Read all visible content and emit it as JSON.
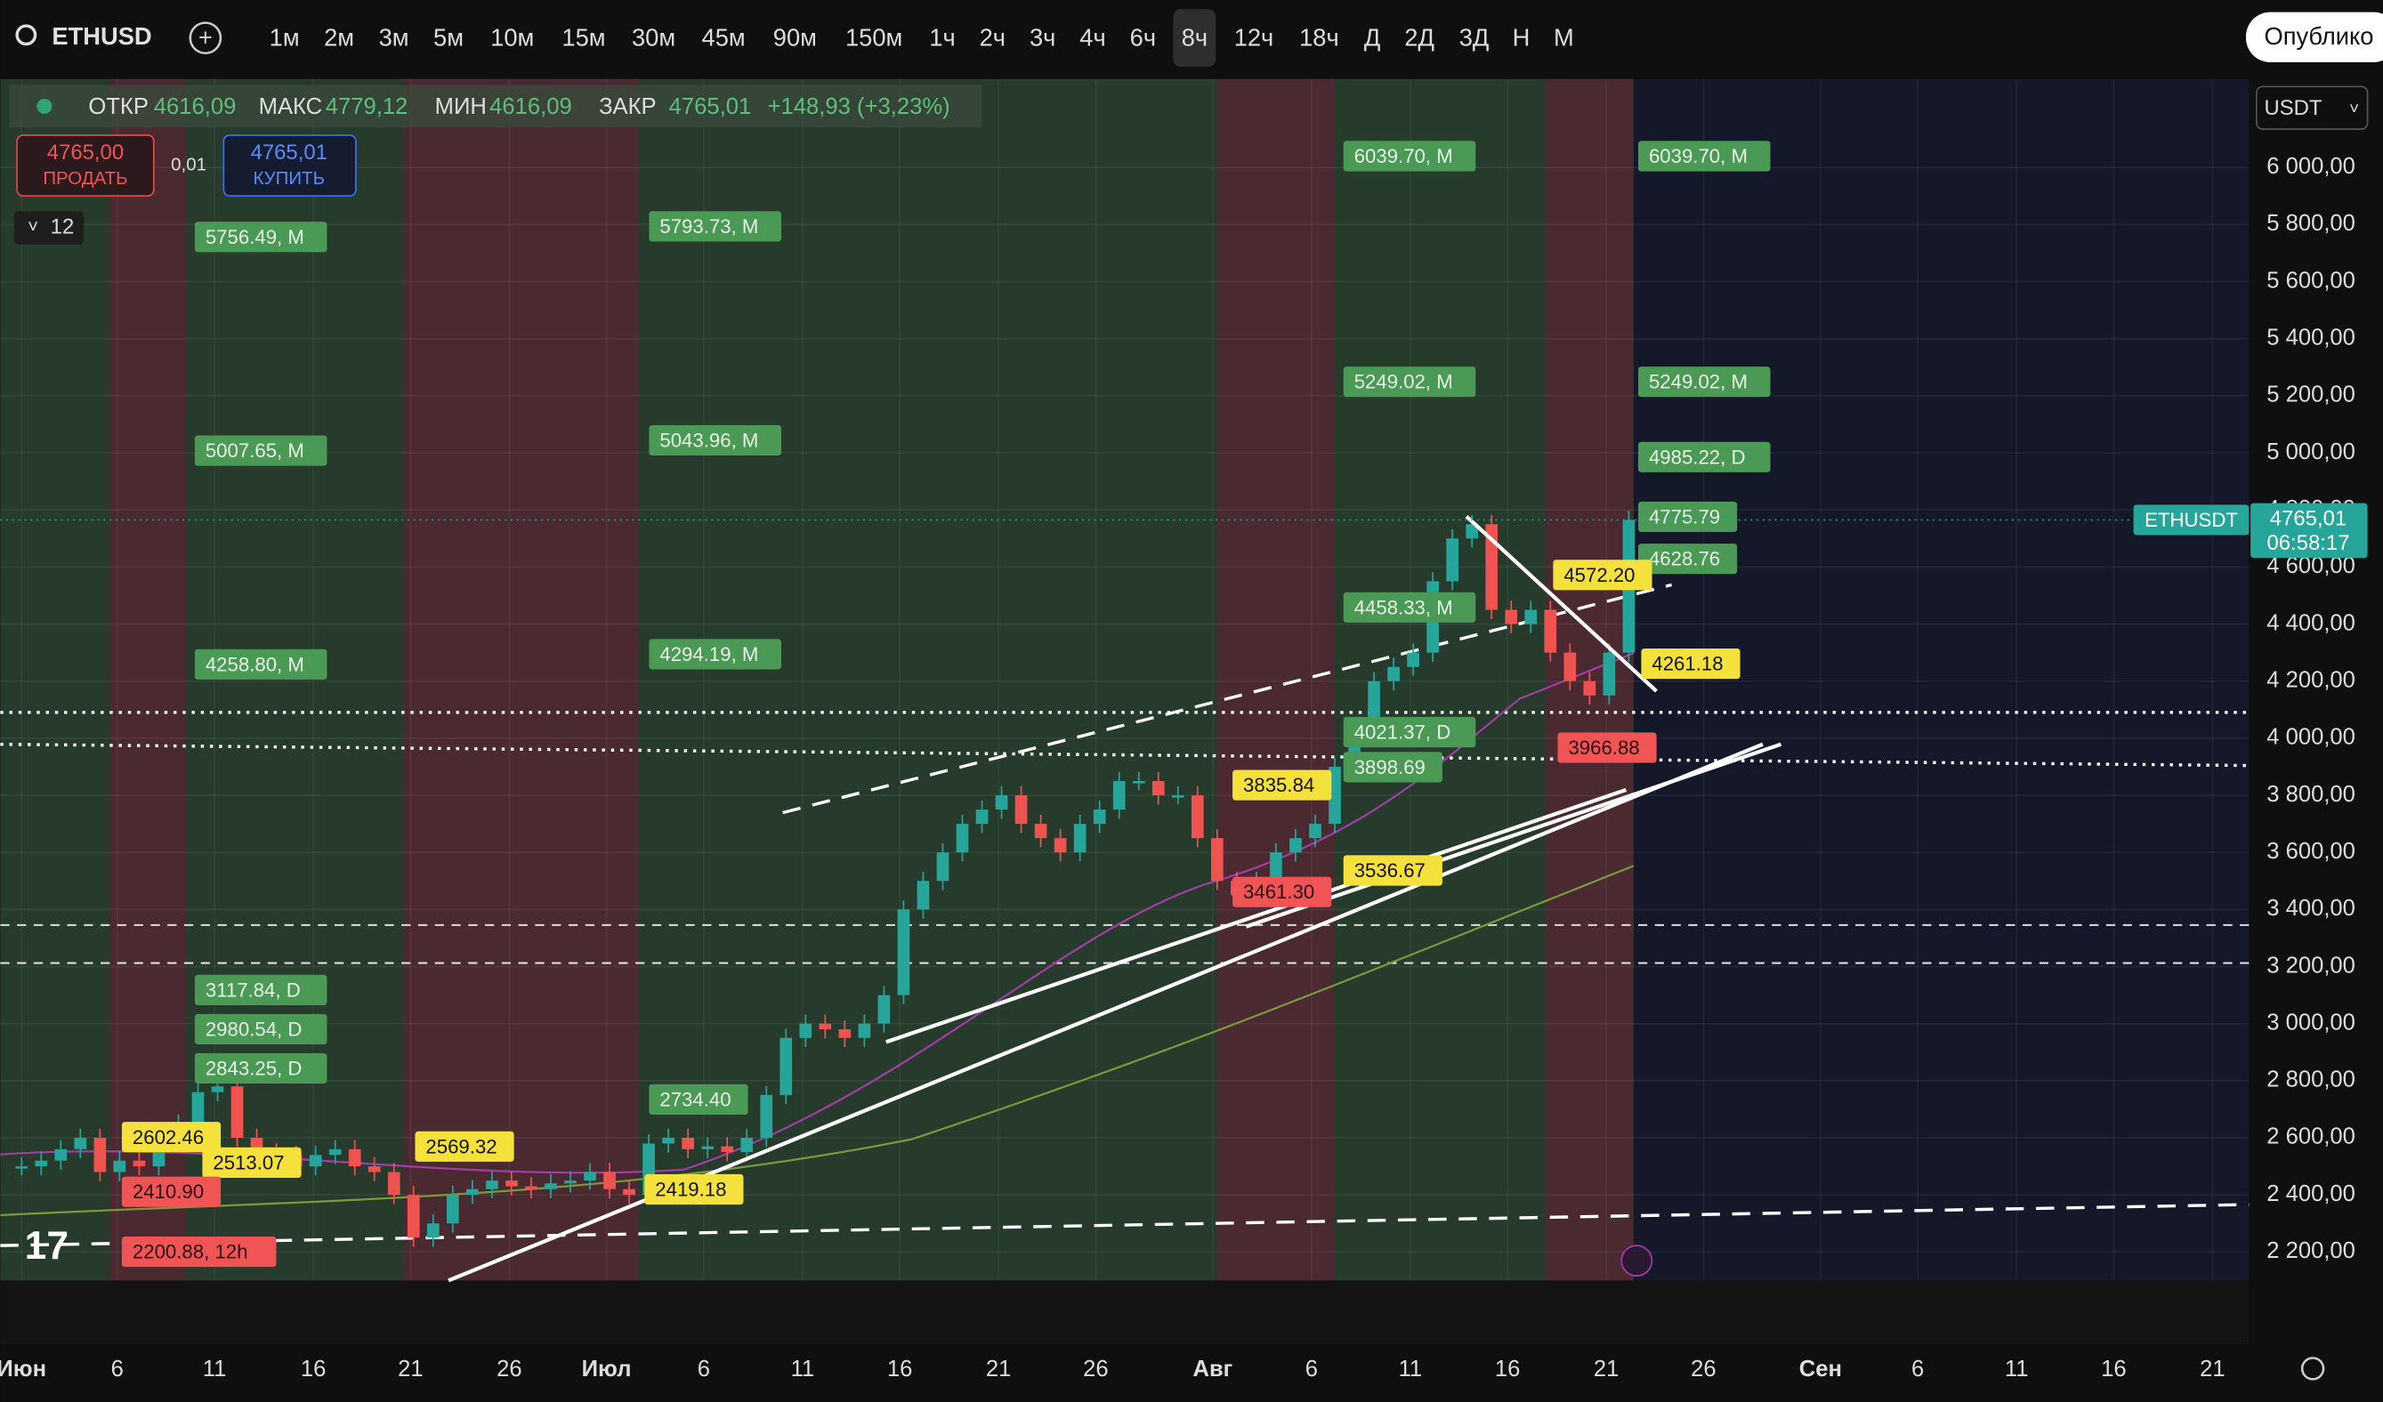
{
  "toolbar": {
    "symbol": "ETHUSD",
    "intervals": [
      "1м",
      "2м",
      "3м",
      "5м",
      "10м",
      "15м",
      "30м",
      "45м",
      "90м",
      "150м",
      "1ч",
      "2ч",
      "3ч",
      "4ч",
      "6ч",
      "8ч",
      "12ч",
      "18ч",
      "Д",
      "2Д",
      "3Д",
      "Н",
      "М"
    ],
    "publish": "Опублико"
  },
  "ohlc": {
    "open_label": "ОТКР",
    "open": "4616,09",
    "high_label": "МАКС",
    "high": "4779,12",
    "low_label": "МИН",
    "low": "4616,09",
    "close_label": "ЗАКР",
    "close": "4765,01",
    "change": "+148,93 (+3,23%)"
  },
  "trade": {
    "sell_price": "4765,00",
    "sell": "ПРОДАТЬ",
    "spread": "0,01",
    "buy_price": "4765,01",
    "buy": "КУПИТЬ"
  },
  "indicator_count": "12",
  "currency": "USDT",
  "chart": {
    "type": "candlestick",
    "ylim": [
      2100,
      6310
    ],
    "yticks": [
      {
        "value": 2200,
        "label": "2 200,00"
      },
      {
        "value": 2400,
        "label": "2 400,00"
      },
      {
        "value": 2600,
        "label": "2 600,00"
      },
      {
        "value": 2800,
        "label": "2 800,00"
      },
      {
        "value": 3000,
        "label": "3 000,00"
      },
      {
        "value": 3200,
        "label": "3 200,00"
      },
      {
        "value": 3400,
        "label": "3 400,00"
      },
      {
        "value": 3600,
        "label": "3 600,00"
      },
      {
        "value": 3800,
        "label": "3 800,00"
      },
      {
        "value": 4000,
        "label": "4 000,00"
      },
      {
        "value": 4200,
        "label": "4 200,00"
      },
      {
        "value": 4400,
        "label": "4 400,00"
      },
      {
        "value": 4600,
        "label": "4 600,00"
      },
      {
        "value": 4800,
        "label": "4 800,00"
      },
      {
        "value": 5000,
        "label": "5 000,00"
      },
      {
        "value": 5200,
        "label": "5 200,00"
      },
      {
        "value": 5400,
        "label": "5 400,00"
      },
      {
        "value": 5600,
        "label": "5 600,00"
      },
      {
        "value": 5800,
        "label": "5 800,00"
      },
      {
        "value": 6000,
        "label": "6 000,00"
      }
    ],
    "dates": [
      "Июн",
      "6",
      "11",
      "16",
      "21",
      "26",
      "Июл",
      "6",
      "11",
      "16",
      "21",
      "26",
      "Авг",
      "6",
      "11",
      "16",
      "21",
      "26",
      "Сен",
      "6",
      "11",
      "16",
      "21"
    ],
    "closes": [
      2500,
      2520,
      2560,
      2600,
      2480,
      2520,
      2500,
      2600,
      2650,
      2760,
      2780,
      2600,
      2550,
      2540,
      2500,
      2540,
      2560,
      2500,
      2480,
      2400,
      2250,
      2300,
      2400,
      2420,
      2450,
      2430,
      2420,
      2440,
      2450,
      2480,
      2420,
      2400,
      2580,
      2600,
      2560,
      2570,
      2550,
      2600,
      2750,
      2950,
      3000,
      2980,
      2950,
      3000,
      3100,
      3400,
      3500,
      3600,
      3700,
      3750,
      3800,
      3700,
      3650,
      3600,
      3700,
      3750,
      3850,
      3850,
      3800,
      3800,
      3650,
      3500,
      3450,
      3500,
      3600,
      3650,
      3700,
      3900,
      4000,
      4200,
      4250,
      4300,
      4550,
      4700,
      4750,
      4450,
      4400,
      4450,
      4300,
      4200,
      4150,
      4300,
      4765
    ],
    "last_price": {
      "symbol": "ETHUSDT",
      "value": 4765.01,
      "label": "4765,01",
      "timer": "06:58:17"
    },
    "levels": [
      {
        "label": "5756.49, M",
        "value": 5756.49,
        "style": "green"
      },
      {
        "label": "5007.65, M",
        "value": 5007.65,
        "style": "green"
      },
      {
        "label": "4258.80, M",
        "value": 4258.8,
        "style": "green"
      },
      {
        "label": "3117.84, D",
        "value": 3117.84,
        "style": "green"
      },
      {
        "label": "2980.54, D",
        "value": 2980.54,
        "style": "green"
      },
      {
        "label": "2843.25, D",
        "value": 2843.25,
        "style": "green"
      },
      {
        "label": "5793.73, M",
        "value": 5793.73,
        "style": "green"
      },
      {
        "label": "5043.96, M",
        "value": 5043.96,
        "style": "green"
      },
      {
        "label": "4294.19, M",
        "value": 4294.19,
        "style": "green"
      },
      {
        "label": "2734.40",
        "value": 2734.4,
        "style": "green"
      },
      {
        "label": "6039.70, M",
        "value": 6039.7,
        "style": "green"
      },
      {
        "label": "5249.02, M",
        "value": 5249.02,
        "style": "green"
      },
      {
        "label": "4458.33, M",
        "value": 4458.33,
        "style": "green"
      },
      {
        "label": "4021.37, D",
        "value": 4021.37,
        "style": "green"
      },
      {
        "label": "3898.69",
        "value": 3898.69,
        "style": "green"
      },
      {
        "label": "6039.70, M",
        "value": 6039.7,
        "style": "green"
      },
      {
        "label": "5249.02, M",
        "value": 5249.02,
        "style": "green"
      },
      {
        "label": "4985.22, D",
        "value": 4985.22,
        "style": "green"
      },
      {
        "label": "4775.79",
        "value": 4775.79,
        "style": "green"
      },
      {
        "label": "4628.76",
        "value": 4628.76,
        "style": "green"
      },
      {
        "label": "2602.46",
        "value": 2602.46,
        "style": "yellow"
      },
      {
        "label": "2513.07",
        "value": 2513.07,
        "style": "yellow"
      },
      {
        "label": "2569.32",
        "value": 2569.32,
        "style": "yellow"
      },
      {
        "label": "2419.18",
        "value": 2419.18,
        "style": "yellow"
      },
      {
        "label": "3835.84",
        "value": 3835.84,
        "style": "yellow"
      },
      {
        "label": "3536.67",
        "value": 3536.67,
        "style": "yellow"
      },
      {
        "label": "4572.20",
        "value": 4572.2,
        "style": "yellow"
      },
      {
        "label": "4261.18",
        "value": 4261.18,
        "style": "yellow"
      },
      {
        "label": "2410.90",
        "value": 2410.9,
        "style": "red"
      },
      {
        "label": "2200.88, 12h",
        "value": 2200.88,
        "style": "red"
      },
      {
        "label": "3461.30",
        "value": 3461.3,
        "style": "red"
      },
      {
        "label": "3966.88",
        "value": 3966.88,
        "style": "red"
      }
    ]
  }
}
